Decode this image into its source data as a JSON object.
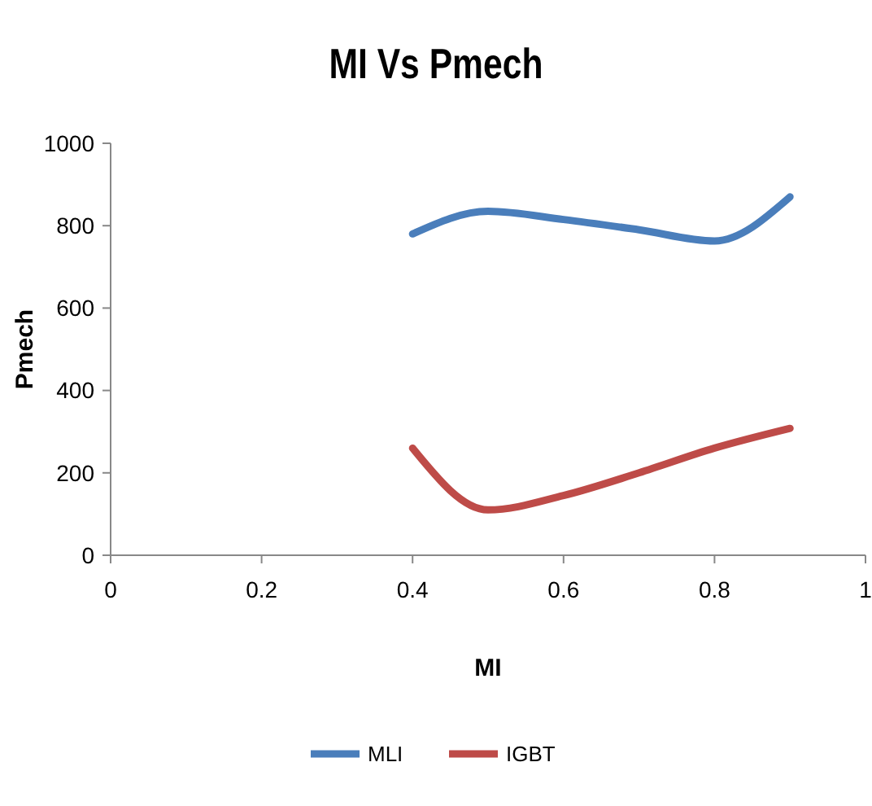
{
  "chart_data": {
    "type": "line",
    "title": "MI Vs Pmech",
    "xlabel": "MI",
    "ylabel": "Pmech",
    "x": [
      0.4,
      0.5,
      0.6,
      0.7,
      0.8,
      0.9
    ],
    "series": [
      {
        "name": "MLI",
        "color": "#4a7ebb",
        "values": [
          780,
          835,
          815,
          790,
          763,
          870
        ]
      },
      {
        "name": "IGBT",
        "color": "#be4b48",
        "values": [
          260,
          110,
          145,
          200,
          260,
          308
        ]
      }
    ],
    "xlim": [
      0,
      1
    ],
    "xticks": [
      0,
      0.2,
      0.4,
      0.6,
      0.8,
      1
    ],
    "ylim": [
      0,
      1000
    ],
    "yticks": [
      0,
      200,
      400,
      600,
      800,
      1000
    ],
    "grid": false,
    "legend": "bottom",
    "marker": "none",
    "line_style": "solid"
  }
}
